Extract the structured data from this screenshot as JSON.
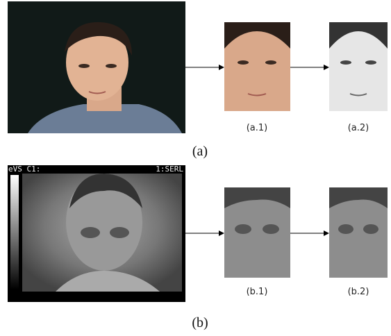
{
  "figure": {
    "visible": {
      "caption": "(a)",
      "left_text": "(a.1)",
      "right_text": "(a.2)"
    },
    "thermal": {
      "caption": "(b)",
      "left_text": "(b.1)",
      "right_text": "(b.2)",
      "overlay_left": "eVS C1:",
      "overlay_right": "1:SERL"
    }
  }
}
